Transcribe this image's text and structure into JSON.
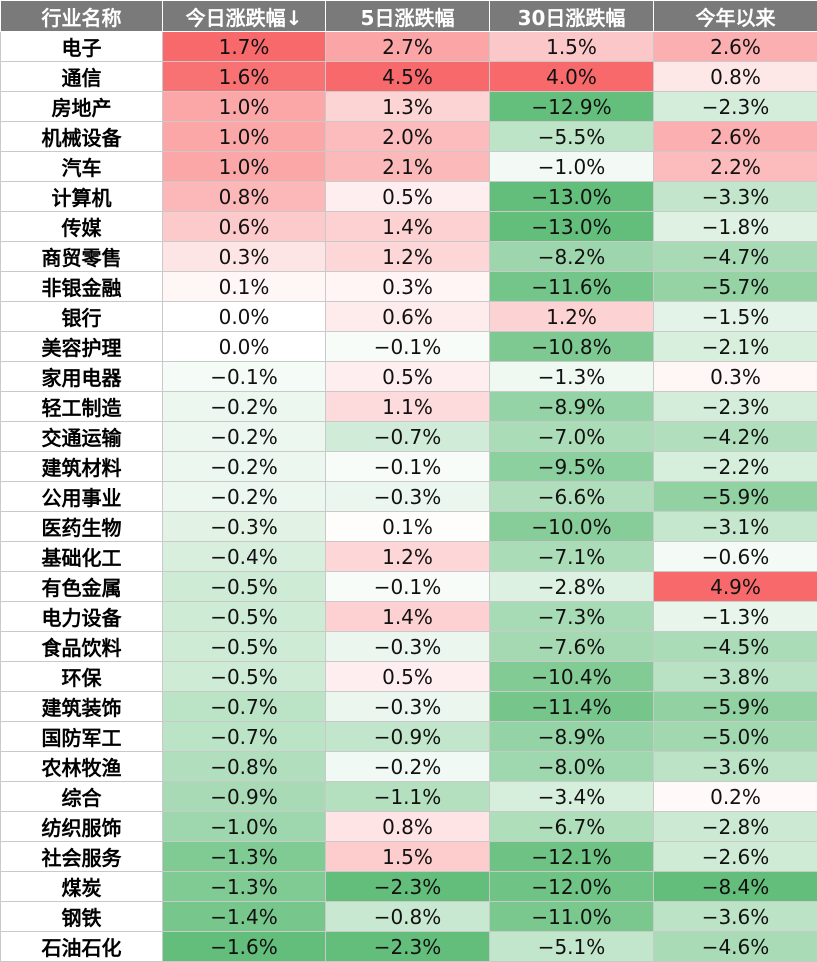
{
  "chart_data": {
    "type": "table",
    "columns": [
      "行业名称",
      "今日涨跌幅↓",
      "5日涨跌幅",
      "30日涨跌幅",
      "今年以来"
    ],
    "rows": [
      {
        "name": "电子",
        "values": [
          "1.7%",
          "2.7%",
          "1.5%",
          "2.6%"
        ]
      },
      {
        "name": "通信",
        "values": [
          "1.6%",
          "4.5%",
          "4.0%",
          "0.8%"
        ]
      },
      {
        "name": "房地产",
        "values": [
          "1.0%",
          "1.3%",
          "−12.9%",
          "−2.3%"
        ]
      },
      {
        "name": "机械设备",
        "values": [
          "1.0%",
          "2.0%",
          "−5.5%",
          "2.6%"
        ]
      },
      {
        "name": "汽车",
        "values": [
          "1.0%",
          "2.1%",
          "−1.0%",
          "2.2%"
        ]
      },
      {
        "name": "计算机",
        "values": [
          "0.8%",
          "0.5%",
          "−13.0%",
          "−3.3%"
        ]
      },
      {
        "name": "传媒",
        "values": [
          "0.6%",
          "1.4%",
          "−13.0%",
          "−1.8%"
        ]
      },
      {
        "name": "商贸零售",
        "values": [
          "0.3%",
          "1.2%",
          "−8.2%",
          "−4.7%"
        ]
      },
      {
        "name": "非银金融",
        "values": [
          "0.1%",
          "0.3%",
          "−11.6%",
          "−5.7%"
        ]
      },
      {
        "name": "银行",
        "values": [
          "0.0%",
          "0.6%",
          "1.2%",
          "−1.5%"
        ]
      },
      {
        "name": "美容护理",
        "values": [
          "0.0%",
          "−0.1%",
          "−10.8%",
          "−2.1%"
        ]
      },
      {
        "name": "家用电器",
        "values": [
          "−0.1%",
          "0.5%",
          "−1.3%",
          "0.3%"
        ]
      },
      {
        "name": "轻工制造",
        "values": [
          "−0.2%",
          "1.1%",
          "−8.9%",
          "−2.3%"
        ]
      },
      {
        "name": "交通运输",
        "values": [
          "−0.2%",
          "−0.7%",
          "−7.0%",
          "−4.2%"
        ]
      },
      {
        "name": "建筑材料",
        "values": [
          "−0.2%",
          "−0.1%",
          "−9.5%",
          "−2.2%"
        ]
      },
      {
        "name": "公用事业",
        "values": [
          "−0.2%",
          "−0.3%",
          "−6.6%",
          "−5.9%"
        ]
      },
      {
        "name": "医药生物",
        "values": [
          "−0.3%",
          "0.1%",
          "−10.0%",
          "−3.1%"
        ]
      },
      {
        "name": "基础化工",
        "values": [
          "−0.4%",
          "1.2%",
          "−7.1%",
          "−0.6%"
        ]
      },
      {
        "name": "有色金属",
        "values": [
          "−0.5%",
          "−0.1%",
          "−2.8%",
          "4.9%"
        ]
      },
      {
        "name": "电力设备",
        "values": [
          "−0.5%",
          "1.4%",
          "−7.3%",
          "−1.3%"
        ]
      },
      {
        "name": "食品饮料",
        "values": [
          "−0.5%",
          "−0.3%",
          "−7.6%",
          "−4.5%"
        ]
      },
      {
        "name": "环保",
        "values": [
          "−0.5%",
          "0.5%",
          "−10.4%",
          "−3.8%"
        ]
      },
      {
        "name": "建筑装饰",
        "values": [
          "−0.7%",
          "−0.3%",
          "−11.4%",
          "−5.9%"
        ]
      },
      {
        "name": "国防军工",
        "values": [
          "−0.7%",
          "−0.9%",
          "−8.9%",
          "−5.0%"
        ]
      },
      {
        "name": "农林牧渔",
        "values": [
          "−0.8%",
          "−0.2%",
          "−8.0%",
          "−3.6%"
        ]
      },
      {
        "name": "综合",
        "values": [
          "−0.9%",
          "−1.1%",
          "−3.4%",
          "0.2%"
        ]
      },
      {
        "name": "纺织服饰",
        "values": [
          "−1.0%",
          "0.8%",
          "−6.7%",
          "−2.8%"
        ]
      },
      {
        "name": "社会服务",
        "values": [
          "−1.3%",
          "1.5%",
          "−12.1%",
          "−2.6%"
        ]
      },
      {
        "name": "煤炭",
        "values": [
          "−1.3%",
          "−2.3%",
          "−12.0%",
          "−8.4%"
        ]
      },
      {
        "name": "钢铁",
        "values": [
          "−1.4%",
          "−0.8%",
          "−11.0%",
          "−3.6%"
        ]
      },
      {
        "name": "石油石化",
        "values": [
          "−1.6%",
          "−2.3%",
          "−5.1%",
          "−4.6%"
        ]
      }
    ],
    "colors": {
      "header_bg": "#7a7a7a",
      "header_text": "#ffffff",
      "positive": "#f8696b",
      "neutral": "#ffffff",
      "negative": "#63be7b"
    },
    "sorted_by": "今日涨跌幅"
  }
}
